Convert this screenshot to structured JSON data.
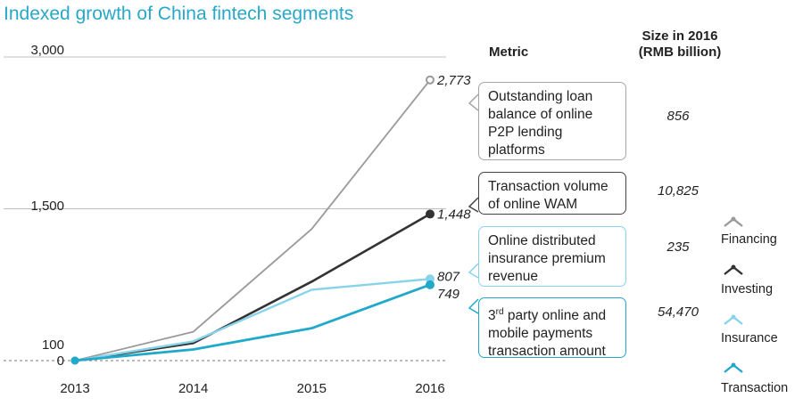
{
  "title": "Indexed growth of China fintech segments",
  "table_headers": {
    "metric": "Metric",
    "size_line1": "Size in 2016",
    "size_line2": "(RMB billion)"
  },
  "colors": {
    "Financing": "#9a9a9a",
    "Investing": "#333333",
    "Insurance": "#86d3ea",
    "Transaction": "#21a9cb",
    "grid": "#bfbfbf",
    "title": "#29a7c8"
  },
  "chart_data": {
    "type": "line",
    "title": "Indexed growth of China fintech segments",
    "x": [
      "2013",
      "2014",
      "2015",
      "2016"
    ],
    "y_ticks": [
      0,
      100,
      1500,
      3000
    ],
    "y_tick_labels": [
      "0",
      "100",
      "1,500",
      "3,000"
    ],
    "ylim": [
      0,
      3000
    ],
    "grid": "horizontal at 1,500 and 3,000; dashed baseline at 0",
    "series": [
      {
        "name": "Financing",
        "values": [
          0,
          250,
          1300,
          2773
        ],
        "end_label": "2,773"
      },
      {
        "name": "Investing",
        "values": [
          0,
          120,
          780,
          1448
        ],
        "end_label": "1,448"
      },
      {
        "name": "Insurance",
        "values": [
          0,
          190,
          700,
          807
        ],
        "end_label": "807"
      },
      {
        "name": "Transaction",
        "values": [
          0,
          110,
          320,
          749
        ],
        "end_label": "749"
      }
    ],
    "legend_position": "right",
    "metrics": [
      {
        "series": "Financing",
        "line1": "Outstanding loan",
        "line2": "balance of online",
        "line3": "P2P lending",
        "line4": "platforms",
        "size": "856"
      },
      {
        "series": "Investing",
        "line1": "Transaction volume",
        "line2": "of online WAM",
        "size": "10,825"
      },
      {
        "series": "Insurance",
        "line1": "Online distributed",
        "line2": "insurance premium",
        "line3": "revenue",
        "size": "235"
      },
      {
        "series": "Transaction",
        "line1_pre": "3",
        "line1_sup": "rd",
        "line1_post": " party online and",
        "line2": "mobile payments",
        "line3": "transaction amount",
        "size": "54,470"
      }
    ]
  }
}
